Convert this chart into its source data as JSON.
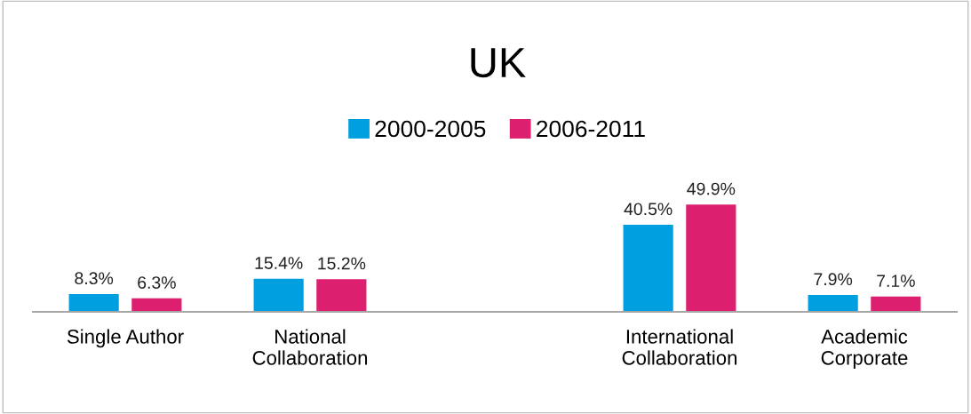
{
  "chart_data": {
    "type": "bar",
    "title": "UK",
    "categories": [
      "Single Author",
      "National\nCollaboration",
      null,
      "International\nCollaboration",
      "Academic\nCorporate"
    ],
    "series": [
      {
        "name": "2000-2005",
        "color": "#009fdf",
        "values": [
          8.3,
          15.4,
          null,
          40.5,
          7.9
        ],
        "value_labels": [
          "8.3%",
          "15.4%",
          null,
          "40.5%",
          "7.9%"
        ]
      },
      {
        "name": "2006-2011",
        "color": "#dc1f6f",
        "values": [
          6.3,
          15.2,
          null,
          49.9,
          7.1
        ],
        "value_labels": [
          "6.3%",
          "15.2%",
          null,
          "49.9%",
          "7.1%"
        ]
      }
    ],
    "legend": "top",
    "grid": false
  }
}
